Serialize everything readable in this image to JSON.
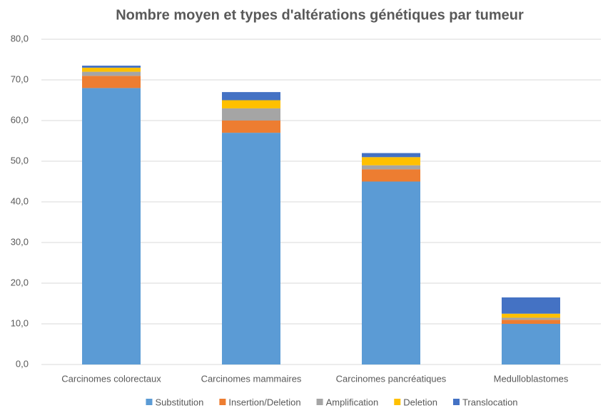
{
  "chart_data": {
    "type": "stacked_bar",
    "title": "Nombre moyen et types d'altérations génétiques par tumeur",
    "categories": [
      "Carcinomes colorectaux",
      "Carcinomes mammaires",
      "Carcinomes pancréatiques",
      "Medulloblastomes"
    ],
    "series": [
      {
        "name": "Substitution",
        "color": "#5b9bd5",
        "values": [
          68,
          57,
          45,
          10
        ]
      },
      {
        "name": "Insertion/Deletion",
        "color": "#ed7d31",
        "values": [
          3,
          3,
          3,
          1
        ]
      },
      {
        "name": "Amplification",
        "color": "#a5a5a5",
        "values": [
          1,
          3,
          1,
          0.5
        ]
      },
      {
        "name": "Deletion",
        "color": "#ffc000",
        "values": [
          1,
          2,
          2,
          1
        ]
      },
      {
        "name": "Translocation",
        "color": "#4472c4",
        "values": [
          0.5,
          2,
          1,
          4
        ]
      }
    ],
    "ylim": [
      0,
      80
    ],
    "yticks": [
      {
        "value": 0,
        "label": "0,0"
      },
      {
        "value": 10,
        "label": "10,0"
      },
      {
        "value": 20,
        "label": "20,0"
      },
      {
        "value": 30,
        "label": "30,0"
      },
      {
        "value": 40,
        "label": "40,0"
      },
      {
        "value": 50,
        "label": "50,0"
      },
      {
        "value": 60,
        "label": "60,0"
      },
      {
        "value": 70,
        "label": "70,0"
      },
      {
        "value": 80,
        "label": "80,0"
      }
    ],
    "grid": true,
    "legend": "bottom"
  }
}
